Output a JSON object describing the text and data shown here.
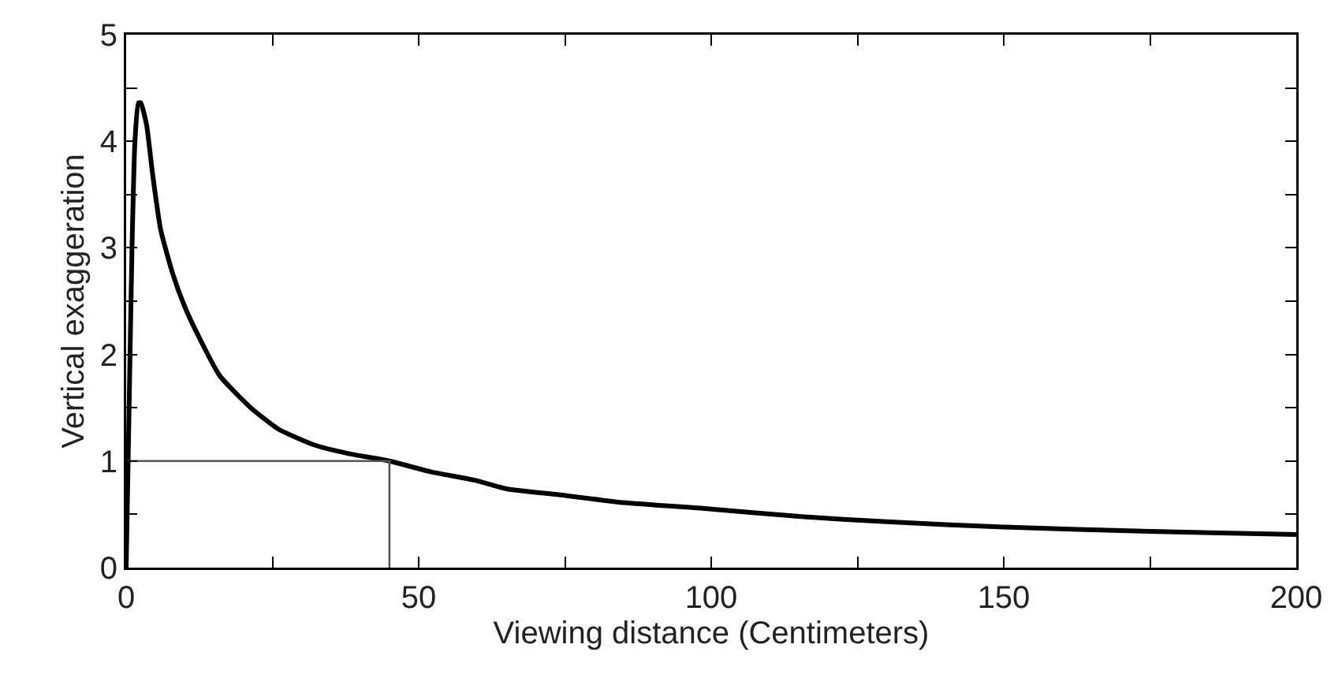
{
  "chart_data": {
    "type": "line",
    "xlabel": "Viewing distance (Centimeters)",
    "ylabel": "Vertical exaggeration",
    "xlim": [
      0,
      200
    ],
    "ylim": [
      0,
      5
    ],
    "xticks": [
      0,
      {
        "value": 25,
        "label": null
      },
      50,
      {
        "value": 75,
        "label": null
      },
      100,
      {
        "value": 125,
        "label": null
      },
      150,
      {
        "value": 175,
        "label": null
      },
      200
    ],
    "yticks": [
      0,
      {
        "value": 0.5,
        "label": null
      },
      1,
      {
        "value": 1.5,
        "label": null
      },
      2,
      {
        "value": 2.5,
        "label": null
      },
      3,
      {
        "value": 3.5,
        "label": null
      },
      4,
      {
        "value": 4.5,
        "label": null
      },
      5
    ],
    "grid": false,
    "marker": "none",
    "line_style": "solid",
    "series": [
      {
        "color": "#000000",
        "x": [
          0,
          0.5,
          1,
          1.5,
          2.1,
          2.5,
          3.5,
          4.5,
          5.9,
          8,
          10,
          12.2,
          16,
          21.3,
          26,
          32.2,
          38,
          45,
          52,
          59.6,
          65,
          74.5,
          85,
          100,
          115,
          130,
          150,
          175,
          200
        ],
        "values": [
          0,
          1.5,
          3,
          4,
          4.36,
          4.36,
          4.15,
          3.7,
          3.17,
          2.75,
          2.45,
          2.19,
          1.8,
          1.5,
          1.3,
          1.15,
          1.07,
          1.0,
          0.9,
          0.82,
          0.74,
          0.68,
          0.61,
          0.55,
          0.48,
          0.43,
          0.38,
          0.34,
          0.31
        ]
      },
      {
        "color": "#555555",
        "x": [
          0,
          45,
          45
        ],
        "values": [
          1,
          1,
          0
        ]
      }
    ]
  }
}
